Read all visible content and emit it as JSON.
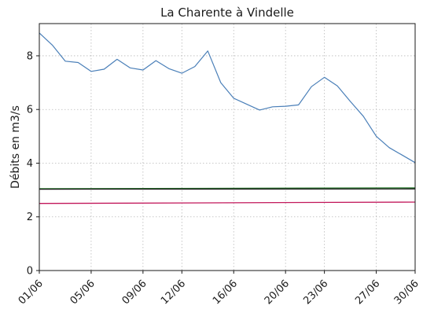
{
  "chart_data": {
    "type": "line",
    "title": "La Charente à Vindelle",
    "xlabel": "",
    "ylabel": "Débits en m3/s",
    "x_tick_labels": [
      "01/06",
      "05/06",
      "09/06",
      "12/06",
      "16/06",
      "20/06",
      "23/06",
      "27/06",
      "30/06"
    ],
    "x_tick_days": [
      1,
      5,
      9,
      12,
      16,
      20,
      23,
      27,
      30
    ],
    "xlim": [
      1,
      30
    ],
    "ylim": [
      0,
      9.2
    ],
    "y_ticks": [
      0,
      2,
      4,
      6,
      8
    ],
    "grid": true,
    "series": [
      {
        "role": "flow",
        "color": "#4a7fb8",
        "x": [
          1,
          2,
          3,
          4,
          5,
          6,
          7,
          8,
          9,
          10,
          11,
          12,
          13,
          14,
          15,
          16,
          17,
          18,
          19,
          20,
          21,
          22,
          23,
          24,
          25,
          26,
          27,
          28,
          29,
          30
        ],
        "y": [
          8.85,
          8.4,
          7.8,
          7.75,
          7.42,
          7.5,
          7.87,
          7.55,
          7.47,
          7.82,
          7.52,
          7.35,
          7.6,
          8.18,
          7.0,
          6.42,
          6.2,
          5.98,
          6.1,
          6.12,
          6.17,
          6.85,
          7.2,
          6.88,
          6.3,
          5.75,
          5.0,
          4.58,
          4.3,
          4.02
        ]
      },
      {
        "role": "threshold",
        "color": "#2e7d32",
        "x": [
          1,
          30
        ],
        "y": [
          3.05,
          3.08
        ]
      },
      {
        "role": "threshold",
        "color": "#1a1a1a",
        "x": [
          1,
          30
        ],
        "y": [
          3.03,
          3.04
        ]
      },
      {
        "role": "threshold",
        "color": "#c2185b",
        "x": [
          1,
          30
        ],
        "y": [
          2.5,
          2.55
        ]
      }
    ]
  }
}
